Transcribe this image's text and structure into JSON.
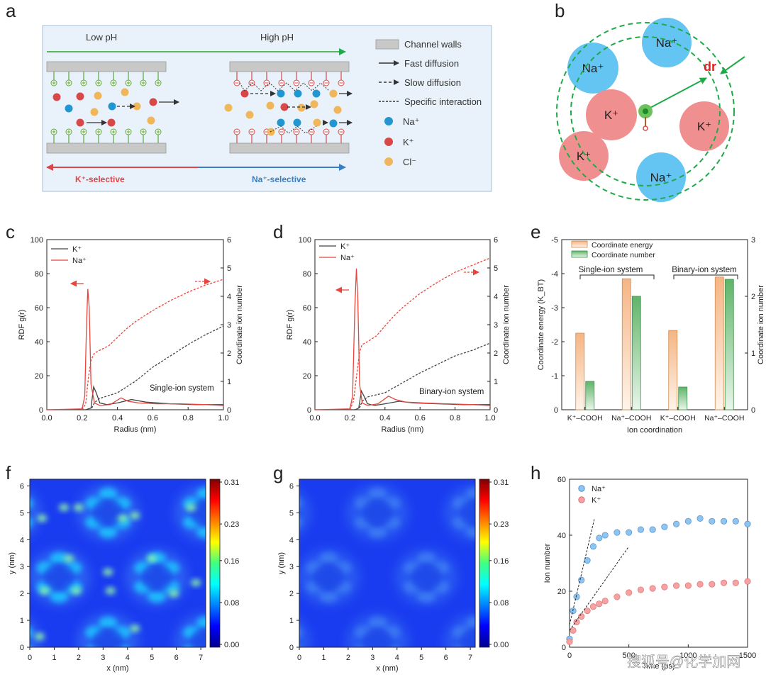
{
  "panel_a": {
    "letter": "a",
    "low_ph": "Low pH",
    "high_ph": "High pH",
    "k_selective": "K⁺-selective",
    "na_selective": "Na⁺-selective",
    "legend": {
      "channel_walls": "Channel walls",
      "fast": "Fast diffusion",
      "slow": "Slow diffusion",
      "specific": "Specific interaction",
      "na": "Na⁺",
      "k": "K⁺",
      "cl": "Cl⁻"
    },
    "colors": {
      "na": "#2196d0",
      "k": "#d94848",
      "cl": "#f0b65a",
      "plus": "#5aa833",
      "minus": "#d94848",
      "wall": "#c8c8c8",
      "bg": "#e9f2fa"
    }
  },
  "panel_b": {
    "letter": "b",
    "dr": "dr",
    "ions": [
      "Na⁺",
      "Na⁺",
      "K⁺",
      "K⁺",
      "K⁺",
      "Na⁺"
    ],
    "colors": {
      "na": "#64c4f2",
      "k": "#f08f8f",
      "shell": "#1faa4a",
      "dr": "#e02020"
    }
  },
  "chart_data": [
    {
      "panel": "c",
      "type": "line",
      "xlabel": "Radius (nm)",
      "ylabel": "RDF g(r)",
      "y2label": "Coordinate ion number",
      "annotation": "Single-ion system",
      "xlim": [
        0,
        1.0
      ],
      "ylim": [
        0,
        100
      ],
      "y2lim": [
        0,
        6
      ],
      "xticks": [
        "0.0",
        "0.2",
        "0.4",
        "0.6",
        "0.8",
        "1.0"
      ],
      "yticks": [
        "0",
        "20",
        "40",
        "60",
        "80",
        "100"
      ],
      "y2ticks": [
        "0",
        "1",
        "2",
        "3",
        "4",
        "5",
        "6"
      ],
      "legend": [
        "K⁺",
        "Na⁺"
      ],
      "series": [
        {
          "name": "K⁺",
          "axis": "left",
          "color": "#444444",
          "dash": false,
          "x": [
            0,
            0.22,
            0.25,
            0.265,
            0.28,
            0.3,
            0.34,
            0.4,
            0.48,
            0.56,
            0.7,
            0.85,
            1.0
          ],
          "y": [
            0,
            0,
            1,
            13.5,
            10,
            4,
            3,
            4,
            6,
            4.5,
            3.5,
            3,
            3
          ]
        },
        {
          "name": "Na⁺",
          "axis": "left",
          "color": "#e8453c",
          "dash": false,
          "x": [
            0,
            0.2,
            0.215,
            0.225,
            0.232,
            0.24,
            0.25,
            0.27,
            0.3,
            0.36,
            0.42,
            0.46,
            0.52,
            0.62,
            0.75,
            0.9,
            1.0
          ],
          "y": [
            0,
            0.5,
            8,
            50,
            71,
            60,
            15,
            4,
            2.5,
            3,
            7,
            5,
            4,
            3.5,
            3.5,
            3,
            2.5
          ]
        },
        {
          "name": "K⁺",
          "axis": "right",
          "color": "#444444",
          "dash": true,
          "x": [
            0.2,
            0.25,
            0.27,
            0.3,
            0.4,
            0.5,
            0.6,
            0.7,
            0.8,
            0.9,
            1.0
          ],
          "y": [
            0,
            0,
            0.25,
            0.4,
            0.6,
            1.0,
            1.5,
            1.9,
            2.3,
            2.65,
            2.95
          ]
        },
        {
          "name": "Na⁺",
          "axis": "right",
          "color": "#e8453c",
          "dash": true,
          "x": [
            0.2,
            0.22,
            0.235,
            0.25,
            0.27,
            0.3,
            0.35,
            0.4,
            0.45,
            0.5,
            0.6,
            0.7,
            0.8,
            0.9,
            1.0
          ],
          "y": [
            0,
            0.2,
            1.1,
            1.75,
            2.0,
            2.1,
            2.25,
            2.55,
            2.85,
            3.1,
            3.5,
            3.85,
            4.15,
            4.4,
            4.6
          ]
        }
      ]
    },
    {
      "panel": "d",
      "type": "line",
      "xlabel": "Radius (nm)",
      "ylabel": "RDF g(r)",
      "y2label": "Coordinate ion number",
      "annotation": "Binary-ion system",
      "xlim": [
        0,
        1.0
      ],
      "ylim": [
        0,
        100
      ],
      "y2lim": [
        0,
        6
      ],
      "xticks": [
        "0.0",
        "0.2",
        "0.4",
        "0.6",
        "0.8",
        "1.0"
      ],
      "yticks": [
        "0",
        "20",
        "40",
        "60",
        "80",
        "100"
      ],
      "y2ticks": [
        "0",
        "1",
        "2",
        "3",
        "4",
        "5",
        "6"
      ],
      "legend": [
        "K⁺",
        "Na⁺"
      ],
      "series": [
        {
          "name": "K⁺",
          "axis": "left",
          "color": "#444444",
          "dash": false,
          "x": [
            0,
            0.23,
            0.25,
            0.265,
            0.28,
            0.3,
            0.34,
            0.4,
            0.48,
            0.56,
            0.7,
            0.85,
            1.0
          ],
          "y": [
            0,
            0,
            1,
            11,
            8,
            3.5,
            2.5,
            3.5,
            5,
            4,
            3.5,
            3,
            3
          ]
        },
        {
          "name": "Na⁺",
          "axis": "left",
          "color": "#e8453c",
          "dash": false,
          "x": [
            0,
            0.2,
            0.215,
            0.228,
            0.237,
            0.245,
            0.255,
            0.27,
            0.3,
            0.36,
            0.42,
            0.46,
            0.52,
            0.62,
            0.75,
            0.9,
            1.0
          ],
          "y": [
            0,
            0.5,
            8,
            60,
            83,
            65,
            15,
            4,
            2.5,
            3.5,
            8,
            6,
            4.5,
            4,
            3.5,
            3,
            2.5
          ]
        },
        {
          "name": "K⁺",
          "axis": "right",
          "color": "#444444",
          "dash": true,
          "x": [
            0.2,
            0.25,
            0.27,
            0.3,
            0.4,
            0.5,
            0.6,
            0.7,
            0.8,
            0.9,
            1.0
          ],
          "y": [
            0,
            0,
            0.3,
            0.45,
            0.6,
            0.95,
            1.3,
            1.6,
            1.9,
            2.1,
            2.35
          ]
        },
        {
          "name": "Na⁺",
          "axis": "right",
          "color": "#e8453c",
          "dash": true,
          "x": [
            0.2,
            0.22,
            0.24,
            0.255,
            0.27,
            0.3,
            0.35,
            0.4,
            0.45,
            0.5,
            0.6,
            0.7,
            0.8,
            0.9,
            1.0
          ],
          "y": [
            0,
            0.3,
            1.3,
            2.05,
            2.3,
            2.4,
            2.6,
            2.95,
            3.3,
            3.6,
            4.1,
            4.5,
            4.85,
            5.1,
            5.35
          ]
        }
      ]
    },
    {
      "panel": "e",
      "type": "bar",
      "xlabel": "Ion coordination",
      "ylabel": "Coordinate energy (K_BT)",
      "y2label": "Coordinate ion number",
      "categories": [
        "K⁺–COOH",
        "Na⁺–COOH",
        "K⁺–COOH",
        "Na⁺–COOH"
      ],
      "groups": [
        "Single-ion system",
        "Binary-ion system"
      ],
      "ylim": [
        0,
        -5
      ],
      "y2lim": [
        0,
        3
      ],
      "yticks": [
        "0",
        "-1",
        "-2",
        "-3",
        "-4",
        "-5"
      ],
      "y2ticks": [
        "0",
        "1",
        "2",
        "3"
      ],
      "legend": [
        "Coordinate energy",
        "Coordinate number"
      ],
      "series": [
        {
          "name": "Coordinate energy",
          "axis": "left",
          "values": [
            -2.25,
            -3.85,
            -2.33,
            -3.9
          ]
        },
        {
          "name": "Coordinate number",
          "axis": "right",
          "values": [
            0.5,
            2.0,
            0.4,
            2.3
          ]
        }
      ]
    },
    {
      "panel": "f",
      "type": "heatmap",
      "xlabel": "x (nm)",
      "ylabel": "y (nm)",
      "xlim": [
        0,
        7.2
      ],
      "ylim": [
        0,
        6.25
      ],
      "xticks": [
        "0",
        "1",
        "2",
        "3",
        "4",
        "5",
        "6",
        "7"
      ],
      "yticks": [
        "0",
        "1",
        "2",
        "3",
        "4",
        "5",
        "6"
      ],
      "colorbar_ticks": [
        "0.31",
        "0.23",
        "0.16",
        "0.08",
        "0.00"
      ],
      "colorbar_range": [
        0.0,
        0.31
      ]
    },
    {
      "panel": "g",
      "type": "heatmap",
      "xlabel": "x (nm)",
      "ylabel": "y (nm)",
      "xlim": [
        0,
        7.2
      ],
      "ylim": [
        0,
        6.25
      ],
      "xticks": [
        "0",
        "1",
        "2",
        "3",
        "4",
        "5",
        "6",
        "7"
      ],
      "yticks": [
        "0",
        "1",
        "2",
        "3",
        "4",
        "5",
        "6"
      ],
      "colorbar_ticks": [
        "0.31",
        "0.23",
        "0.16",
        "0.08",
        "0.00"
      ],
      "colorbar_range": [
        0.0,
        0.31
      ]
    },
    {
      "panel": "h",
      "type": "scatter",
      "xlabel": "Time (ps)",
      "ylabel": "Ion number",
      "xlim": [
        0,
        1500
      ],
      "ylim": [
        0,
        60
      ],
      "xticks": [
        "0",
        "500",
        "1000",
        "1500"
      ],
      "yticks": [
        "0",
        "20",
        "40",
        "60"
      ],
      "legend": [
        "Na⁺",
        "K⁺"
      ],
      "series": [
        {
          "name": "Na⁺",
          "color": "#8ec4ee",
          "x": [
            0,
            30,
            60,
            100,
            150,
            200,
            250,
            300,
            400,
            500,
            600,
            700,
            800,
            900,
            1000,
            1100,
            1200,
            1300,
            1400,
            1500
          ],
          "y": [
            3,
            13,
            18,
            24,
            31,
            36,
            39,
            40,
            41,
            41,
            42,
            42,
            43,
            44,
            45,
            46,
            45,
            45,
            45,
            44
          ]
        },
        {
          "name": "K⁺",
          "color": "#f4a2a2",
          "x": [
            0,
            30,
            60,
            100,
            150,
            200,
            250,
            300,
            400,
            500,
            600,
            700,
            800,
            900,
            1000,
            1100,
            1200,
            1300,
            1400,
            1500
          ],
          "y": [
            2,
            6,
            9,
            11,
            13,
            14.5,
            15.5,
            16.5,
            18,
            19.5,
            20.5,
            21,
            21.5,
            22,
            22,
            22.5,
            22.5,
            23,
            23,
            23.5
          ]
        }
      ]
    }
  ],
  "letters": [
    "c",
    "d",
    "e",
    "f",
    "g",
    "h"
  ],
  "watermark": "搜狐号@化学加网"
}
